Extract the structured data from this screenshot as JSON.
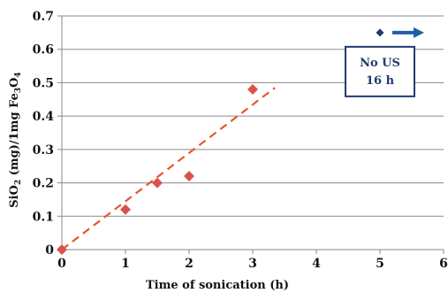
{
  "chart_data": {
    "type": "scatter",
    "title": "",
    "xlabel": "Time of sonication (h)",
    "ylabel": {
      "parts": [
        {
          "t": "SiO"
        },
        {
          "t": "2",
          "sub": true
        },
        {
          "t": " (mg)/1mg Fe"
        },
        {
          "t": "3",
          "sub": true
        },
        {
          "t": "O"
        },
        {
          "t": "4",
          "sub": true
        }
      ]
    },
    "xlim": [
      0,
      6
    ],
    "ylim": [
      0,
      0.7
    ],
    "xticks": [
      0,
      1,
      2,
      3,
      4,
      5,
      6
    ],
    "yticks": [
      0,
      0.1,
      0.2,
      0.3,
      0.4,
      0.5,
      0.6,
      0.7
    ],
    "xtick_labels": [
      "0",
      "1",
      "2",
      "3",
      "4",
      "5",
      "6"
    ],
    "ytick_labels": [
      "0",
      "0.1",
      "0.2",
      "0.3",
      "0.4",
      "0.5",
      "0.6",
      "0.7"
    ],
    "grid": "horizontal",
    "series": [
      {
        "marker": "diamond",
        "color": "#d9534a",
        "x": [
          0,
          1,
          1.5,
          2,
          3
        ],
        "y": [
          0,
          0.12,
          0.2,
          0.22,
          0.48
        ]
      }
    ],
    "trendline": {
      "type": "linear",
      "style": "dashed",
      "color": "#e8562a",
      "x": [
        0,
        3.35
      ],
      "y": [
        0,
        0.485
      ]
    },
    "annotation": {
      "lines": [
        "No US",
        "16 h"
      ],
      "border_color": "#1f3b6e",
      "marker_color": "#1f3b6e",
      "arrow_color": "#1f5fa8",
      "marker_at": [
        5,
        0.65
      ]
    }
  }
}
